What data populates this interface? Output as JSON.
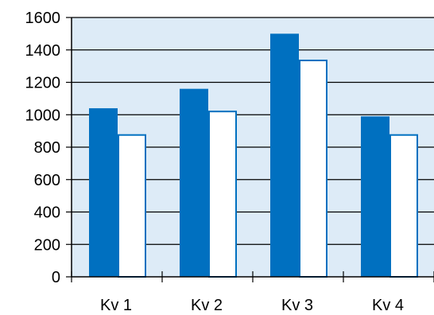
{
  "chart_data": {
    "type": "bar",
    "categories": [
      "Kv 1",
      "Kv 2",
      "Kv 3",
      "Kv 4"
    ],
    "series": [
      {
        "values": [
          1040,
          1160,
          1500,
          990
        ],
        "color": "#0070C0"
      },
      {
        "values": [
          880,
          1025,
          1340,
          880
        ],
        "color": "#FFFFFF",
        "outline": "#0070C0"
      }
    ],
    "ylim": [
      0,
      1600
    ],
    "y_ticks": [
      0,
      200,
      400,
      600,
      800,
      1000,
      1200,
      1400,
      1600
    ],
    "grid": true,
    "plot_background": "#DDEBF7",
    "title": "",
    "xlabel": "",
    "ylabel": ""
  }
}
